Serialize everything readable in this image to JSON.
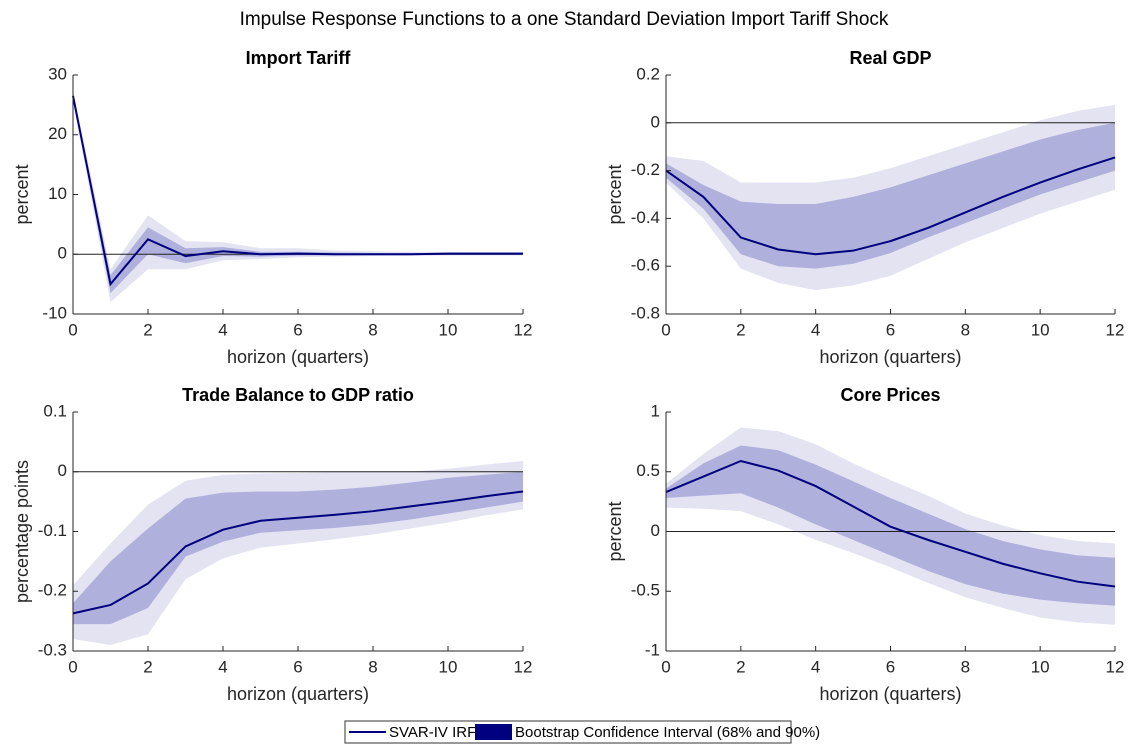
{
  "title": "Impulse Response Functions to a one Standard Deviation Import Tariff Shock",
  "legend": {
    "line_label": "SVAR-IV IRF",
    "band_label": "Bootstrap Confidence Interval (68% and 90%)",
    "line_color": "#000080",
    "band_color": "#000080"
  },
  "chart_data": [
    {
      "type": "line",
      "title": "Import Tariff",
      "xlabel": "horizon (quarters)",
      "ylabel": "percent",
      "x": [
        0,
        1,
        2,
        3,
        4,
        5,
        6,
        7,
        8,
        9,
        10,
        11,
        12
      ],
      "xlim": [
        0,
        12
      ],
      "xticks": [
        0,
        2,
        4,
        6,
        8,
        10,
        12
      ],
      "ylim": [
        -10,
        30
      ],
      "yticks": [
        -10,
        0,
        10,
        20,
        30
      ],
      "zero_line": true,
      "series": [
        {
          "color": "#000080",
          "values": [
            26.5,
            -5,
            2.5,
            -0.3,
            0.5,
            0,
            0.1,
            0,
            0,
            0,
            0.1,
            0.1,
            0.1
          ]
        }
      ],
      "bands": [
        {
          "color": "#e3e3f2",
          "lower": [
            25.5,
            -8,
            -2.5,
            -2.5,
            -1,
            -0.8,
            -0.5,
            -0.4,
            -0.3,
            -0.3,
            -0.2,
            -0.2,
            -0.2
          ],
          "upper": [
            27.5,
            -2.5,
            6.5,
            2.2,
            2,
            1,
            1,
            0.6,
            0.5,
            0.4,
            0.4,
            0.4,
            0.4
          ]
        },
        {
          "color": "#b0b0dc",
          "lower": [
            26,
            -6.5,
            0,
            -1.5,
            -0.3,
            -0.4,
            -0.2,
            -0.2,
            -0.1,
            -0.1,
            -0.1,
            -0.1,
            -0.1
          ],
          "upper": [
            27,
            -3.5,
            4.5,
            1,
            1.2,
            0.4,
            0.4,
            0.3,
            0.2,
            0.2,
            0.2,
            0.2,
            0.2
          ]
        }
      ]
    },
    {
      "type": "line",
      "title": "Real GDP",
      "xlabel": "horizon (quarters)",
      "ylabel": "percent",
      "x": [
        0,
        1,
        2,
        3,
        4,
        5,
        6,
        7,
        8,
        9,
        10,
        11,
        12
      ],
      "xlim": [
        0,
        12
      ],
      "xticks": [
        0,
        2,
        4,
        6,
        8,
        10,
        12
      ],
      "ylim": [
        -0.8,
        0.2
      ],
      "yticks": [
        -0.8,
        -0.6,
        -0.4,
        -0.2,
        0,
        0.2
      ],
      "zero_line": true,
      "series": [
        {
          "color": "#000080",
          "values": [
            -0.2,
            -0.31,
            -0.48,
            -0.53,
            -0.55,
            -0.535,
            -0.495,
            -0.44,
            -0.375,
            -0.31,
            -0.25,
            -0.195,
            -0.145
          ]
        }
      ],
      "bands": [
        {
          "color": "#e3e3f2",
          "lower": [
            -0.25,
            -0.4,
            -0.61,
            -0.67,
            -0.7,
            -0.68,
            -0.64,
            -0.57,
            -0.5,
            -0.44,
            -0.38,
            -0.33,
            -0.28
          ],
          "upper": [
            -0.14,
            -0.16,
            -0.25,
            -0.25,
            -0.25,
            -0.23,
            -0.19,
            -0.14,
            -0.09,
            -0.04,
            0.01,
            0.05,
            0.075
          ]
        },
        {
          "color": "#b0b0dc",
          "lower": [
            -0.23,
            -0.36,
            -0.55,
            -0.6,
            -0.61,
            -0.59,
            -0.545,
            -0.48,
            -0.42,
            -0.36,
            -0.3,
            -0.25,
            -0.2
          ],
          "upper": [
            -0.17,
            -0.26,
            -0.33,
            -0.34,
            -0.34,
            -0.31,
            -0.27,
            -0.22,
            -0.17,
            -0.12,
            -0.07,
            -0.03,
            0
          ]
        }
      ]
    },
    {
      "type": "line",
      "title": "Trade Balance to GDP ratio",
      "xlabel": "horizon (quarters)",
      "ylabel": "percentage points",
      "x": [
        0,
        1,
        2,
        3,
        4,
        5,
        6,
        7,
        8,
        9,
        10,
        11,
        12
      ],
      "xlim": [
        0,
        12
      ],
      "xticks": [
        0,
        2,
        4,
        6,
        8,
        10,
        12
      ],
      "ylim": [
        -0.3,
        0.1
      ],
      "yticks": [
        -0.3,
        -0.2,
        -0.1,
        0,
        0.1
      ],
      "zero_line": true,
      "series": [
        {
          "color": "#000080",
          "values": [
            -0.237,
            -0.223,
            -0.187,
            -0.125,
            -0.097,
            -0.082,
            -0.077,
            -0.072,
            -0.066,
            -0.058,
            -0.05,
            -0.041,
            -0.033
          ]
        }
      ],
      "bands": [
        {
          "color": "#e3e3f2",
          "lower": [
            -0.28,
            -0.29,
            -0.272,
            -0.18,
            -0.145,
            -0.127,
            -0.12,
            -0.113,
            -0.105,
            -0.095,
            -0.085,
            -0.073,
            -0.063
          ],
          "upper": [
            -0.19,
            -0.12,
            -0.055,
            -0.015,
            -0.005,
            -0.003,
            -0.002,
            0,
            0,
            0,
            0.005,
            0.012,
            0.018
          ]
        },
        {
          "color": "#b0b0dc",
          "lower": [
            -0.255,
            -0.255,
            -0.228,
            -0.142,
            -0.117,
            -0.102,
            -0.098,
            -0.094,
            -0.088,
            -0.08,
            -0.07,
            -0.06,
            -0.05
          ],
          "upper": [
            -0.22,
            -0.15,
            -0.095,
            -0.045,
            -0.035,
            -0.033,
            -0.033,
            -0.03,
            -0.025,
            -0.018,
            -0.01,
            -0.005,
            0
          ]
        }
      ]
    },
    {
      "type": "line",
      "title": "Core Prices",
      "xlabel": "horizon (quarters)",
      "ylabel": "percent",
      "x": [
        0,
        1,
        2,
        3,
        4,
        5,
        6,
        7,
        8,
        9,
        10,
        11,
        12
      ],
      "xlim": [
        0,
        12
      ],
      "xticks": [
        0,
        2,
        4,
        6,
        8,
        10,
        12
      ],
      "ylim": [
        -1,
        1
      ],
      "yticks": [
        -1,
        -0.5,
        0,
        0.5,
        1
      ],
      "zero_line": true,
      "series": [
        {
          "color": "#000080",
          "values": [
            0.33,
            0.46,
            0.59,
            0.51,
            0.38,
            0.21,
            0.04,
            -0.07,
            -0.17,
            -0.27,
            -0.35,
            -0.42,
            -0.46
          ]
        }
      ],
      "bands": [
        {
          "color": "#e3e3f2",
          "lower": [
            0.2,
            0.19,
            0.17,
            0.06,
            -0.07,
            -0.18,
            -0.3,
            -0.43,
            -0.55,
            -0.64,
            -0.72,
            -0.76,
            -0.78
          ],
          "upper": [
            0.4,
            0.65,
            0.87,
            0.84,
            0.73,
            0.57,
            0.43,
            0.3,
            0.15,
            0.05,
            -0.03,
            -0.08,
            -0.1
          ]
        },
        {
          "color": "#b0b0dc",
          "lower": [
            0.28,
            0.3,
            0.32,
            0.2,
            0.06,
            -0.07,
            -0.2,
            -0.33,
            -0.44,
            -0.52,
            -0.57,
            -0.6,
            -0.62
          ],
          "upper": [
            0.36,
            0.57,
            0.72,
            0.68,
            0.56,
            0.42,
            0.28,
            0.15,
            0.02,
            -0.08,
            -0.15,
            -0.2,
            -0.22
          ]
        }
      ]
    }
  ]
}
